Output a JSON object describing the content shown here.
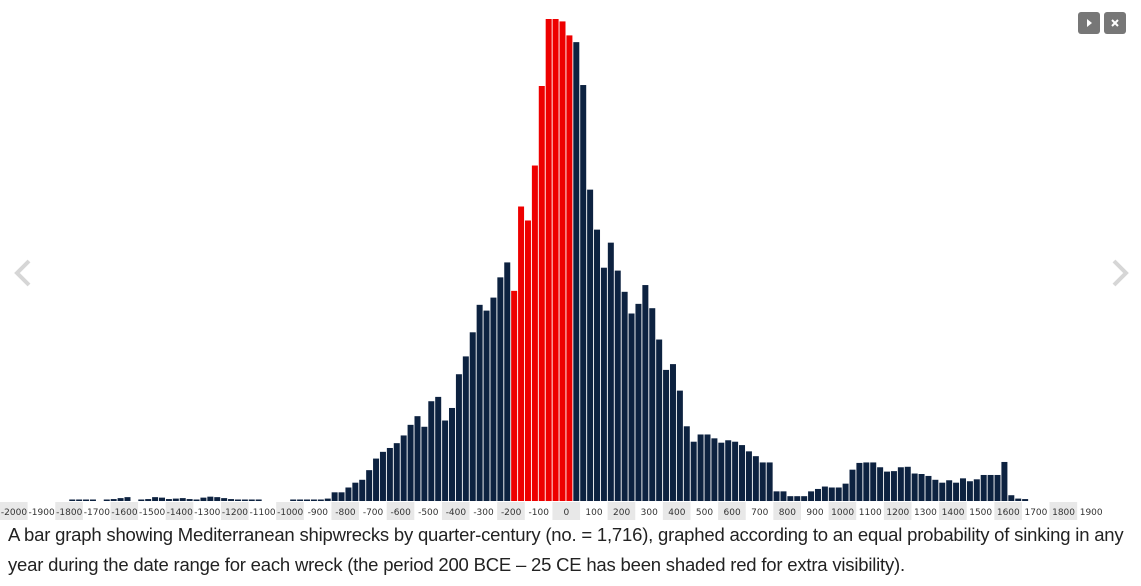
{
  "controls": {
    "play_icon": "play-icon",
    "close_icon": "close-icon",
    "prev_icon": "chevron-left-icon",
    "next_icon": "chevron-right-icon"
  },
  "caption": "A bar graph showing Mediterranean shipwrecks by quarter-century (no. = 1,716), graphed according to an equal probability of sinking in any year during the date range for each wreck (the period 200 BCE – 25 CE has been shaded red for extra visibility).",
  "chart_data": {
    "type": "bar",
    "title": "",
    "xlabel": "",
    "ylabel": "",
    "colors": {
      "bar": "#0d2240",
      "highlight": "#ee0000",
      "axis_band": "#e8e8e8"
    },
    "highlight_range": [
      -200,
      25
    ],
    "x_start": -2000,
    "bin_width": 25,
    "ylim": [
      0,
      100
    ],
    "tick_labels": [
      "-2000",
      "-1900",
      "-1800",
      "-1700",
      "-1600",
      "-1500",
      "-1400",
      "-1300",
      "-1200",
      "-1100",
      "-1000",
      "-900",
      "-800",
      "-700",
      "-600",
      "-500",
      "-400",
      "-300",
      "-200",
      "-100",
      "0",
      "100",
      "200",
      "300",
      "400",
      "500",
      "600",
      "700",
      "800",
      "900",
      "1000",
      "1100",
      "1200",
      "1300",
      "1400",
      "1500",
      "1600",
      "1700",
      "1800",
      "1900"
    ],
    "values": [
      0,
      0,
      0,
      0,
      0,
      0,
      0,
      0,
      0.2,
      0.2,
      0.2,
      0.2,
      0,
      0.3,
      0.4,
      0.6,
      0.8,
      0,
      0.3,
      0.4,
      0.8,
      0.7,
      0.4,
      0.5,
      0.6,
      0.4,
      0.3,
      0.7,
      0.9,
      0.8,
      0.6,
      0.4,
      0.3,
      0.3,
      0.3,
      0.2,
      0,
      0,
      0,
      0,
      0.2,
      0.2,
      0.2,
      0.3,
      0.3,
      0.5,
      1.8,
      1.8,
      2.8,
      3.8,
      4.4,
      6.4,
      8.8,
      10.2,
      11.0,
      12.0,
      13.6,
      15.8,
      17.6,
      15.4,
      20.7,
      21.6,
      16.7,
      19.3,
      26.3,
      30.0,
      35.0,
      40.7,
      39.5,
      42.2,
      46.4,
      49.5,
      43.6,
      61.1,
      58.2,
      69.6,
      86.1,
      100.0,
      100.0,
      99.5,
      96.6,
      95.2,
      86.3,
      64.6,
      56.3,
      48.4,
      53.6,
      47.8,
      43.4,
      38.9,
      40.9,
      44.8,
      40.0,
      33.5,
      27.2,
      28.4,
      22.9,
      15.5,
      12.3,
      13.8,
      13.8,
      13.0,
      12.1,
      12.6,
      12.3,
      11.6,
      10.3,
      9.3,
      8.0,
      8.0,
      2.0,
      2.0,
      1.0,
      1.0,
      1.0,
      2.0,
      2.5,
      3.0,
      2.8,
      2.8,
      3.6,
      6.5,
      7.9,
      8.0,
      8.0,
      7.0,
      6.1,
      6.2,
      7.0,
      7.1,
      5.7,
      5.6,
      5.2,
      4.4,
      3.8,
      4.3,
      3.8,
      4.7,
      4.1,
      4.5,
      5.4,
      5.4,
      5.4,
      8.1,
      1.2,
      0.5,
      0.4
    ]
  }
}
